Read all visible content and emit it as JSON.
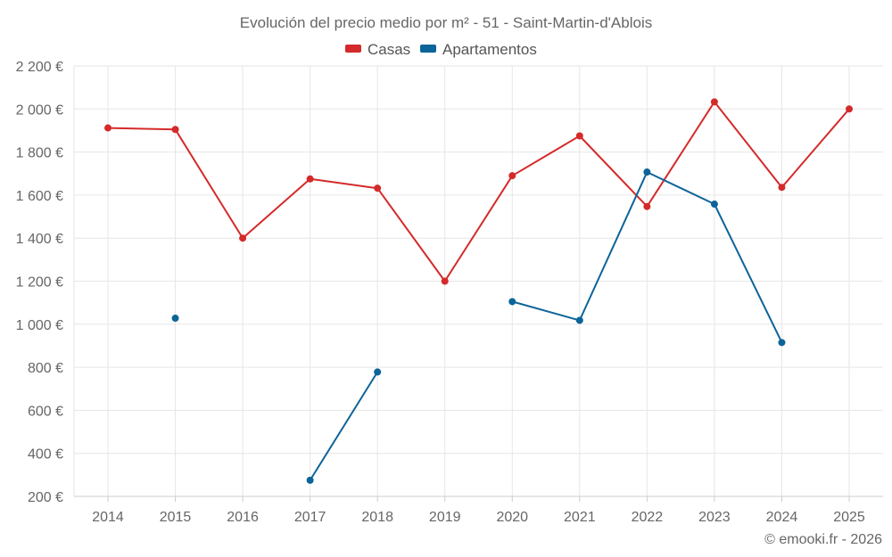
{
  "chart_data": {
    "type": "line",
    "title": "Evolución del precio medio por m² - 51 - Saint-Martin-d'Ablois",
    "categories": [
      "2014",
      "2015",
      "2016",
      "2017",
      "2018",
      "2019",
      "2020",
      "2021",
      "2022",
      "2023",
      "2024",
      "2025"
    ],
    "series": [
      {
        "name": "Casas",
        "color": "#d42a2a",
        "values": [
          1912,
          1905,
          1400,
          1675,
          1632,
          1200,
          1690,
          1875,
          1547,
          2033,
          1636,
          2000
        ]
      },
      {
        "name": "Apartamentos",
        "color": "#0c6499",
        "values": [
          null,
          1028,
          null,
          275,
          778,
          null,
          1105,
          1018,
          1707,
          1558,
          915,
          null
        ]
      }
    ],
    "y_ticks": [
      "200 €",
      "400 €",
      "600 €",
      "800 €",
      "1 000 €",
      "1 200 €",
      "1 400 €",
      "1 600 €",
      "1 800 €",
      "2 000 €",
      "2 200 €"
    ],
    "ylim": [
      200,
      2200
    ],
    "xlabel": "",
    "ylabel": "",
    "grid": true,
    "legend_position": "top-center"
  },
  "credit": "© emooki.fr - 2026"
}
